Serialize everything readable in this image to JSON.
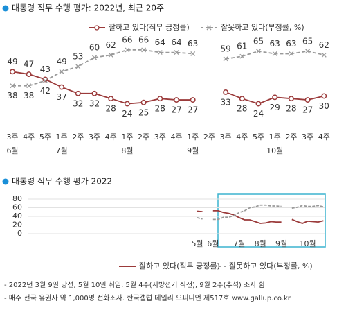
{
  "chart_data": [
    {
      "type": "line",
      "title": "대통령 직무 수행 평가: 2022년, 최근 20주",
      "categories": [
        "3주",
        "4주",
        "5주",
        "1주",
        "2주",
        "3주",
        "4주",
        "1주",
        "2주",
        "3주",
        "4주",
        "1주",
        "2주",
        "3주",
        "4주",
        "5주",
        "1주",
        "2주",
        "3주",
        "4주"
      ],
      "months": [
        "6월",
        null,
        null,
        "7월",
        null,
        null,
        null,
        "8월",
        null,
        null,
        null,
        "9월",
        null,
        null,
        null,
        null,
        "10월",
        null,
        null,
        null
      ],
      "ylim": [
        20,
        70
      ],
      "series": [
        {
          "name": "잘하고 있다(직무 긍정률)",
          "color": "#9b3a3a",
          "values": [
            49,
            47,
            43,
            37,
            32,
            32,
            28,
            24,
            25,
            28,
            27,
            27,
            null,
            33,
            28,
            24,
            29,
            28,
            27,
            30
          ]
        },
        {
          "name": "잘못하고 있다(부정률, %)",
          "color": "#999999",
          "values": [
            38,
            38,
            42,
            49,
            53,
            60,
            62,
            66,
            66,
            64,
            64,
            63,
            null,
            59,
            61,
            65,
            63,
            63,
            65,
            62
          ]
        }
      ]
    },
    {
      "type": "line",
      "title": "대통령 직무 수행 평가 2022",
      "categories": [
        "5월",
        null,
        null,
        "6월",
        null,
        null,
        null,
        null,
        "7월",
        null,
        null,
        null,
        "8월",
        null,
        null,
        null,
        "9월",
        null,
        null,
        null,
        null,
        "10월",
        null,
        null,
        null
      ],
      "ylim": [
        0,
        80
      ],
      "yticks": [
        0,
        20,
        40,
        60,
        80
      ],
      "grid": true,
      "series": [
        {
          "name": "잘하고 있다(직무 긍정률)",
          "color": "#9b3a3a",
          "values": [
            52,
            51,
            null,
            53,
            53,
            49,
            47,
            43,
            37,
            32,
            32,
            28,
            24,
            25,
            28,
            27,
            27,
            null,
            33,
            28,
            24,
            29,
            28,
            27,
            30
          ]
        },
        {
          "name": "잘못하고 있다(부정률, %)",
          "color": "#999999",
          "values": [
            37,
            34,
            null,
            33,
            33,
            38,
            38,
            42,
            49,
            53,
            60,
            62,
            66,
            66,
            64,
            64,
            63,
            null,
            59,
            61,
            65,
            63,
            63,
            65,
            62
          ]
        }
      ]
    }
  ],
  "notes": [
    "- 2022년 3월 9일 당선, 5월 10일 취임. 5월 4주(지방선거 직전), 9월 2주(추석) 조사 쉼",
    "- 매주 전국 유권자 약 1,000명 전화조사. 한국갤럽 데일리 오피니언 제517호 www.gallup.co.kr"
  ]
}
